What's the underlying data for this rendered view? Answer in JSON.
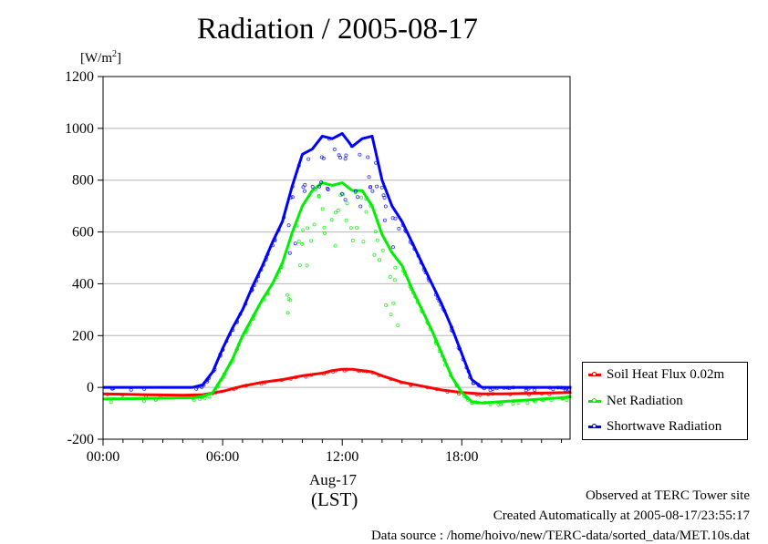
{
  "title": "Radiation / 2005-08-17",
  "unit_label": "[W/m",
  "unit_sup": "2",
  "unit_close": "]",
  "date_label": "Aug-17",
  "tz_label": "(LST)",
  "footer": {
    "line1": "Observed at TERC Tower site",
    "line2": "Created Automatically at 2005-08-17/23:55:17",
    "line3": "Data source : /home/hoivo/new/TERC-data/sorted_data/MET.10s.dat"
  },
  "chart_data": {
    "type": "line",
    "title": "Radiation / 2005-08-17",
    "xlabel": "(LST)",
    "ylabel": "[W/m2]",
    "xlim": [
      0,
      24
    ],
    "ylim": [
      -200,
      1200
    ],
    "grid": true,
    "legend_position": "right-bottom",
    "x_ticks": [
      0,
      6,
      12,
      18
    ],
    "x_tick_labels": [
      "00:00",
      "06:00",
      "12:00",
      "18:00"
    ],
    "y_ticks": [
      -200,
      0,
      200,
      400,
      600,
      800,
      1000,
      1200
    ],
    "y_tick_labels": [
      "-200",
      "0",
      "200",
      "400",
      "600",
      "800",
      "1000",
      "1200"
    ],
    "series": [
      {
        "name": "Shortwave Radiation",
        "color": "#0000ff",
        "x": [
          0,
          4.5,
          5,
          5.5,
          6,
          6.5,
          7,
          7.5,
          8,
          8.5,
          9,
          9.5,
          10,
          10.5,
          11,
          11.5,
          12,
          12.5,
          13,
          13.5,
          14,
          14.5,
          15,
          15.5,
          16,
          16.5,
          17,
          17.5,
          18,
          18.5,
          19,
          20,
          21,
          22,
          23,
          23.5
        ],
        "y": [
          0,
          0,
          10,
          60,
          150,
          230,
          300,
          390,
          470,
          560,
          640,
          780,
          900,
          920,
          970,
          960,
          980,
          930,
          960,
          970,
          800,
          700,
          640,
          560,
          480,
          400,
          320,
          230,
          130,
          30,
          0,
          0,
          0,
          0,
          0,
          0
        ]
      },
      {
        "name": "Net Radiation",
        "color": "#00ee00",
        "x": [
          0,
          4.5,
          5,
          5.5,
          6,
          6.5,
          7,
          7.5,
          8,
          8.5,
          9,
          9.5,
          10,
          10.5,
          11,
          11.5,
          12,
          12.5,
          13,
          13.5,
          14,
          14.5,
          15,
          15.5,
          16,
          16.5,
          17,
          17.5,
          18,
          18.5,
          19,
          20,
          21,
          22,
          23,
          23.5
        ],
        "y": [
          -45,
          -40,
          -35,
          -20,
          40,
          110,
          200,
          270,
          340,
          400,
          480,
          600,
          700,
          760,
          790,
          780,
          790,
          760,
          760,
          700,
          590,
          520,
          470,
          380,
          300,
          220,
          130,
          40,
          -20,
          -55,
          -60,
          -55,
          -50,
          -45,
          -40,
          -35
        ]
      },
      {
        "name": "Soil Heat Flux 0.02m",
        "color": "#ff0000",
        "x": [
          0,
          2,
          4,
          5,
          6,
          7,
          8,
          9,
          10,
          11,
          11.5,
          12,
          12.5,
          13,
          13.5,
          14,
          15,
          16,
          17,
          18,
          19,
          20,
          22,
          23.5
        ],
        "y": [
          -25,
          -28,
          -30,
          -28,
          -15,
          5,
          20,
          30,
          45,
          55,
          65,
          70,
          70,
          65,
          60,
          45,
          20,
          5,
          -10,
          -20,
          -25,
          -25,
          -22,
          -20
        ]
      }
    ]
  }
}
